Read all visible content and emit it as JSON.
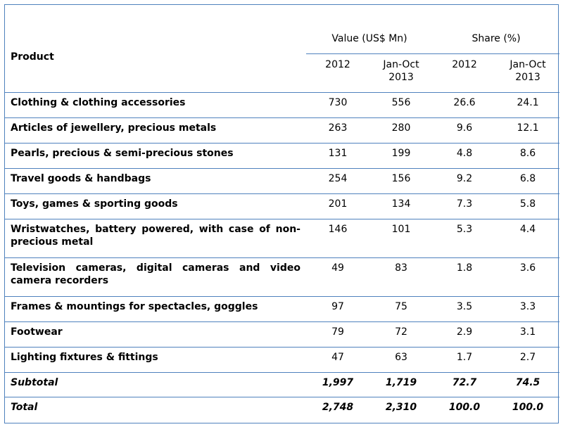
{
  "table": {
    "header": {
      "product": "Product",
      "value_group": "Value (US$ Mn)",
      "share_group": "Share (%)",
      "sub": [
        "2012",
        "Jan-Oct\n2013",
        "2012",
        "Jan-Oct\n2013"
      ]
    },
    "rows": [
      {
        "product": "Clothing & clothing accessories",
        "v2012": "730",
        "v2013": "556",
        "s2012": "26.6",
        "s2013": "24.1"
      },
      {
        "product": "Articles of jewellery, precious metals",
        "v2012": "263",
        "v2013": "280",
        "s2012": "9.6",
        "s2013": "12.1"
      },
      {
        "product": "Pearls, precious & semi-precious stones",
        "v2012": "131",
        "v2013": "199",
        "s2012": "4.8",
        "s2013": "8.6"
      },
      {
        "product": "Travel goods & handbags",
        "v2012": "254",
        "v2013": "156",
        "s2012": "9.2",
        "s2013": "6.8"
      },
      {
        "product": "Toys, games & sporting goods",
        "v2012": "201",
        "v2013": "134",
        "s2012": "7.3",
        "s2013": "5.8"
      },
      {
        "product": "Wristwatches, battery powered, with case of non-precious metal",
        "v2012": "146",
        "v2013": "101",
        "s2012": "5.3",
        "s2013": "4.4"
      },
      {
        "product": "Television cameras, digital cameras and video camera recorders",
        "v2012": "49",
        "v2013": "83",
        "s2012": "1.8",
        "s2013": "3.6"
      },
      {
        "product": "Frames & mountings for spectacles, goggles",
        "v2012": "97",
        "v2013": "75",
        "s2012": "3.5",
        "s2013": "3.3"
      },
      {
        "product": "Footwear",
        "v2012": "79",
        "v2013": "72",
        "s2012": "2.9",
        "s2013": "3.1"
      },
      {
        "product": "Lighting fixtures & fittings",
        "v2012": "47",
        "v2013": "63",
        "s2012": "1.7",
        "s2013": "2.7"
      }
    ],
    "subtotal": {
      "label": "Subtotal",
      "v2012": "1,997",
      "v2013": "1,719",
      "s2012": "72.7",
      "s2013": "74.5"
    },
    "total": {
      "label": "Total",
      "v2012": "2,748",
      "v2013": "2,310",
      "s2012": "100.0",
      "s2013": "100.0"
    }
  }
}
